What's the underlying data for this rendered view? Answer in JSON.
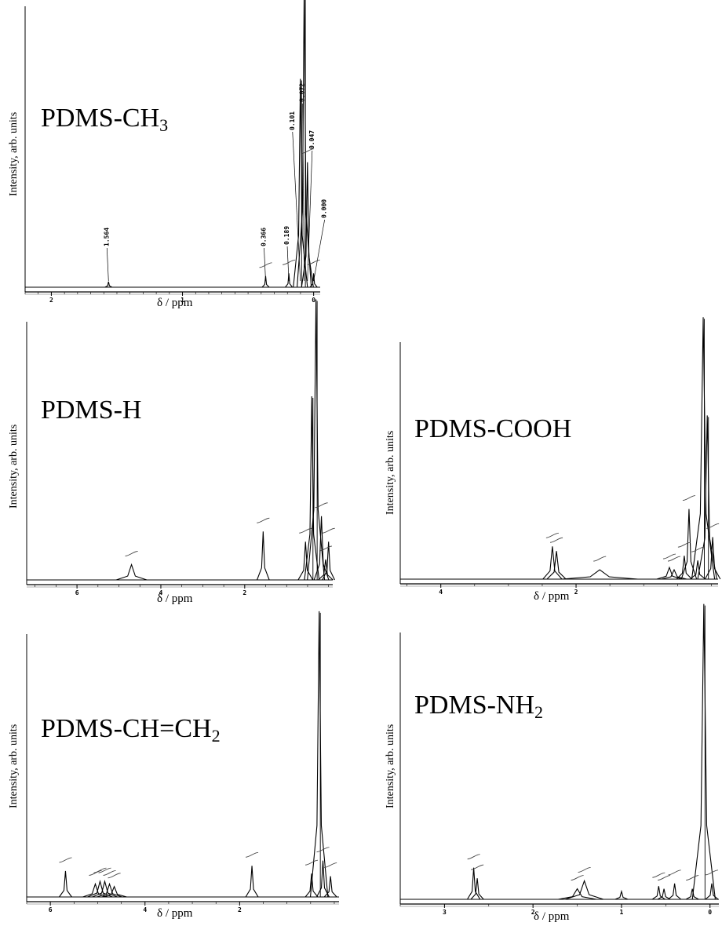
{
  "chart_data": [
    {
      "type": "line",
      "title": "PDMS-CH",
      "title_sub": "3",
      "xlabel": "δ / ppm",
      "ylabel": "Intensity, arb. units",
      "xlim": [
        2.2,
        -0.05
      ],
      "xticks": [
        "2",
        "1",
        "0"
      ],
      "xtick_values": [
        2,
        1,
        0
      ],
      "peaks": [
        {
          "x": 1.564,
          "h": 0.02,
          "w": 0.006
        },
        {
          "x": 0.366,
          "h": 0.04,
          "w": 0.006
        },
        {
          "x": 0.189,
          "h": 0.05,
          "w": 0.006
        },
        {
          "x": 0.101,
          "h": 0.75,
          "w": 0.012
        },
        {
          "x": 0.072,
          "h": 1.08,
          "w": 0.012
        },
        {
          "x": 0.047,
          "h": 0.45,
          "w": 0.01
        },
        {
          "x": -0.0,
          "h": 0.05,
          "w": 0.006
        }
      ],
      "peak_labels": [
        "1.564",
        "0.366",
        "0.189",
        "0.101",
        "0.072",
        "0.047",
        "0.000"
      ]
    },
    {
      "type": "line",
      "title": "PDMS-H",
      "title_sub": "",
      "xlabel": "δ / ppm",
      "ylabel": "Intensity, arb. units",
      "xlim": [
        7.2,
        -0.1
      ],
      "xticks": [
        "6",
        "4",
        "2"
      ],
      "xtick_values": [
        6,
        4,
        2
      ],
      "peaks": [
        {
          "x": 4.7,
          "h": 0.06,
          "w": 0.025
        },
        {
          "x": 1.56,
          "h": 0.19,
          "w": 0.01
        },
        {
          "x": 0.55,
          "h": 0.15,
          "w": 0.012
        },
        {
          "x": 0.4,
          "h": 0.72,
          "w": 0.012
        },
        {
          "x": 0.3,
          "h": 1.1,
          "w": 0.014
        },
        {
          "x": 0.17,
          "h": 0.25,
          "w": 0.012
        },
        {
          "x": 0.07,
          "h": 0.08,
          "w": 0.012
        },
        {
          "x": 0.0,
          "h": 0.15,
          "w": 0.01
        }
      ]
    },
    {
      "type": "line",
      "title": "PDMS-COOH",
      "title_sub": "",
      "xlabel": "δ / ppm",
      "ylabel": "Intensity, arb. units",
      "xlim": [
        4.6,
        -0.1
      ],
      "xticks": [
        "4",
        "2"
      ],
      "xtick_values": [
        4,
        2
      ],
      "peaks": [
        {
          "x": 2.35,
          "h": 0.14,
          "w": 0.015
        },
        {
          "x": 2.29,
          "h": 0.12,
          "w": 0.015
        },
        {
          "x": 1.65,
          "h": 0.04,
          "w": 0.06
        },
        {
          "x": 0.62,
          "h": 0.05,
          "w": 0.02
        },
        {
          "x": 0.55,
          "h": 0.04,
          "w": 0.02
        },
        {
          "x": 0.4,
          "h": 0.1,
          "w": 0.012
        },
        {
          "x": 0.33,
          "h": 0.3,
          "w": 0.012
        },
        {
          "x": 0.2,
          "h": 0.08,
          "w": 0.012
        },
        {
          "x": 0.12,
          "h": 1.12,
          "w": 0.018
        },
        {
          "x": 0.06,
          "h": 0.7,
          "w": 0.015
        },
        {
          "x": -0.02,
          "h": 0.18,
          "w": 0.012
        }
      ]
    },
    {
      "type": "line",
      "title": "PDMS-CH=CH",
      "title_sub": "2",
      "xlabel": "δ / ppm",
      "ylabel": "Intensity, arb. units",
      "xlim": [
        6.5,
        -0.1
      ],
      "xticks": [
        "6",
        "4",
        "2"
      ],
      "xtick_values": [
        6,
        4,
        2
      ],
      "peaks": [
        {
          "x": 5.68,
          "h": 0.1,
          "w": 0.01
        },
        {
          "x": 5.05,
          "h": 0.05,
          "w": 0.02
        },
        {
          "x": 4.95,
          "h": 0.06,
          "w": 0.02
        },
        {
          "x": 4.85,
          "h": 0.06,
          "w": 0.02
        },
        {
          "x": 4.75,
          "h": 0.05,
          "w": 0.02
        },
        {
          "x": 4.65,
          "h": 0.04,
          "w": 0.02
        },
        {
          "x": 1.74,
          "h": 0.12,
          "w": 0.01
        },
        {
          "x": 0.48,
          "h": 0.09,
          "w": 0.01
        },
        {
          "x": 0.32,
          "h": 1.1,
          "w": 0.014
        },
        {
          "x": 0.24,
          "h": 0.14,
          "w": 0.01
        },
        {
          "x": 0.08,
          "h": 0.08,
          "w": 0.01
        }
      ]
    },
    {
      "type": "line",
      "title": "PDMS-NH",
      "title_sub": "2",
      "xlabel": "δ / ppm",
      "ylabel": "Intensity, arb. units",
      "xlim": [
        3.5,
        -0.1
      ],
      "xticks": [
        "3",
        "2",
        "1",
        "0"
      ],
      "xtick_values": [
        3,
        2,
        1,
        0
      ],
      "peaks": [
        {
          "x": 2.67,
          "h": 0.12,
          "w": 0.01
        },
        {
          "x": 2.63,
          "h": 0.08,
          "w": 0.01
        },
        {
          "x": 1.42,
          "h": 0.07,
          "w": 0.03
        },
        {
          "x": 1.5,
          "h": 0.04,
          "w": 0.03
        },
        {
          "x": 1.0,
          "h": 0.03,
          "w": 0.01
        },
        {
          "x": 0.58,
          "h": 0.05,
          "w": 0.01
        },
        {
          "x": 0.52,
          "h": 0.04,
          "w": 0.01
        },
        {
          "x": 0.4,
          "h": 0.06,
          "w": 0.01
        },
        {
          "x": 0.2,
          "h": 0.04,
          "w": 0.01
        },
        {
          "x": 0.07,
          "h": 1.12,
          "w": 0.018
        },
        {
          "x": -0.02,
          "h": 0.06,
          "w": 0.01
        }
      ]
    }
  ]
}
